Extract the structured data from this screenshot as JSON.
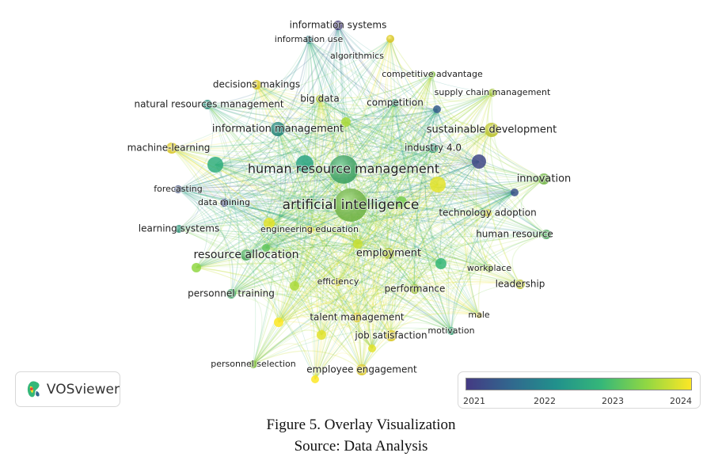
{
  "figure": {
    "caption": "Figure 5. Overlay Visualization",
    "source": "Source: Data Analysis"
  },
  "logo": {
    "text": "VOSviewer",
    "icon": "vosviewer-logo-icon"
  },
  "legend": {
    "ticks": [
      "2021",
      "2022",
      "2023",
      "2024"
    ],
    "colors": [
      "#443a83",
      "#31688e",
      "#21918c",
      "#35b779",
      "#90d743",
      "#fde725"
    ]
  },
  "network": {
    "nodes": [
      {
        "label": "artificial intelligence",
        "year": 2023.3
      },
      {
        "label": "human resource management",
        "year": 2022.9
      },
      {
        "label": "information systems",
        "year": 2021.0
      },
      {
        "label": "information use",
        "year": 2022.0
      },
      {
        "label": "algorithmics",
        "year": 2024.0
      },
      {
        "label": "decisions makings",
        "year": 2024.0
      },
      {
        "label": "competitive advantage",
        "year": 2023.4
      },
      {
        "label": "supply chain management",
        "year": 2023.6
      },
      {
        "label": "natural resources management",
        "year": 2022.4
      },
      {
        "label": "big data",
        "year": 2023.7
      },
      {
        "label": "competition",
        "year": 2022.6
      },
      {
        "label": "information management",
        "year": 2022.3
      },
      {
        "label": "sustainable development",
        "year": 2023.8
      },
      {
        "label": "machine-learning",
        "year": 2024.0
      },
      {
        "label": "industry 4.0",
        "year": 2022.6
      },
      {
        "label": "innovation",
        "year": 2023.3
      },
      {
        "label": "forecasting",
        "year": 2021.3
      },
      {
        "label": "data mining",
        "year": 2021.2
      },
      {
        "label": "technology adoption",
        "year": 2023.9
      },
      {
        "label": "learning systems",
        "year": 2022.5
      },
      {
        "label": "engineering education",
        "year": 2024.0
      },
      {
        "label": "human resource",
        "year": 2023.0
      },
      {
        "label": "resource allocation",
        "year": 2023.0
      },
      {
        "label": "employment",
        "year": 2023.7
      },
      {
        "label": "workplace",
        "year": 2023.5
      },
      {
        "label": "efficiency",
        "year": 2023.9
      },
      {
        "label": "leadership",
        "year": 2023.8
      },
      {
        "label": "personnel training",
        "year": 2022.9
      },
      {
        "label": "performance",
        "year": 2023.6
      },
      {
        "label": "male",
        "year": 2024.0
      },
      {
        "label": "talent management",
        "year": 2024.0
      },
      {
        "label": "motivation",
        "year": 2022.7
      },
      {
        "label": "job satisfaction",
        "year": 2024.0
      },
      {
        "label": "personnel selection",
        "year": 2023.4
      },
      {
        "label": "employee engagement",
        "year": 2024.0
      }
    ]
  }
}
